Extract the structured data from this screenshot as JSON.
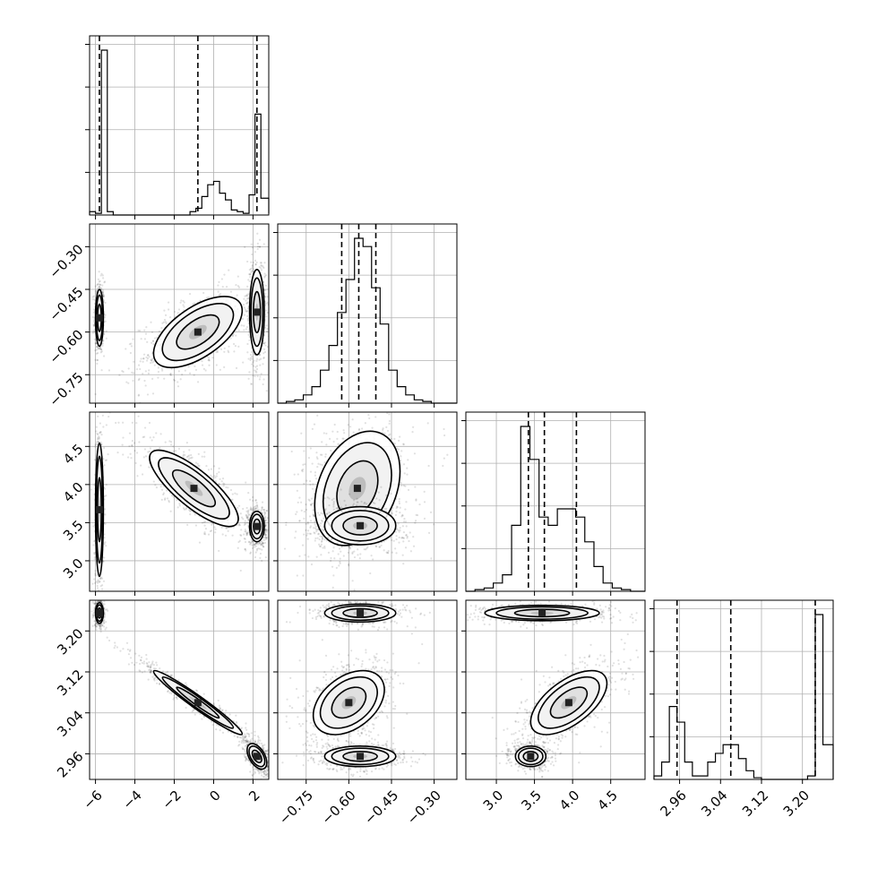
{
  "chart_data": {
    "type": "corner",
    "title": "",
    "grid": true,
    "parameters": [
      {
        "index": 0,
        "range": [
          -6.3,
          2.8
        ],
        "ticks": [
          -6,
          -4,
          -2,
          0,
          2
        ],
        "tick_labels": [
          "−6",
          "−4",
          "−2",
          "0",
          "2"
        ],
        "quantiles": [
          -5.8,
          -0.8,
          2.2
        ]
      },
      {
        "index": 1,
        "range": [
          -0.85,
          -0.22
        ],
        "ticks": [
          -0.75,
          -0.6,
          -0.45,
          -0.3
        ],
        "tick_labels": [
          "−0.75",
          "−0.60",
          "−0.45",
          "−0.30"
        ],
        "quantiles": [
          -0.625,
          -0.565,
          -0.505
        ]
      },
      {
        "index": 2,
        "range": [
          2.6,
          4.95
        ],
        "ticks": [
          3.0,
          3.5,
          4.0,
          4.5
        ],
        "tick_labels": [
          "3.0",
          "3.5",
          "4.0",
          "4.5"
        ],
        "quantiles": [
          3.42,
          3.63,
          4.05
        ]
      },
      {
        "index": 3,
        "range": [
          2.91,
          3.26
        ],
        "ticks": [
          2.96,
          3.04,
          3.12,
          3.2
        ],
        "tick_labels": [
          "2.96",
          "3.04",
          "3.12",
          "3.20"
        ],
        "quantiles": [
          2.955,
          3.06,
          3.225
        ]
      }
    ],
    "histograms": [
      {
        "param": 0,
        "bins": [
          -6.3,
          -6.0,
          -5.7,
          -5.4,
          -5.1,
          -4.8,
          -4.5,
          -4.2,
          -3.9,
          -3.6,
          -3.3,
          -3.0,
          -2.7,
          -2.4,
          -2.1,
          -1.8,
          -1.5,
          -1.2,
          -0.9,
          -0.6,
          -0.3,
          0.0,
          0.3,
          0.6,
          0.9,
          1.2,
          1.5,
          1.8,
          2.1,
          2.4,
          2.8
        ],
        "counts": [
          2,
          1,
          98,
          2,
          0,
          0,
          0,
          0,
          0,
          0,
          0,
          0,
          0,
          0,
          0,
          0,
          0,
          2,
          4,
          11,
          18,
          20,
          13,
          9,
          3,
          2,
          1,
          12,
          60,
          10,
          1
        ]
      },
      {
        "param": 1,
        "bins": [
          -0.85,
          -0.82,
          -0.79,
          -0.76,
          -0.73,
          -0.7,
          -0.67,
          -0.64,
          -0.61,
          -0.58,
          -0.55,
          -0.52,
          -0.49,
          -0.46,
          -0.43,
          -0.4,
          -0.37,
          -0.34,
          -0.31,
          -0.28,
          -0.25,
          -0.22
        ],
        "counts": [
          0,
          1,
          2,
          5,
          10,
          20,
          35,
          55,
          75,
          100,
          95,
          70,
          48,
          20,
          10,
          5,
          2,
          1,
          0,
          0,
          0
        ]
      },
      {
        "param": 2,
        "bins": [
          2.6,
          2.72,
          2.84,
          2.96,
          3.08,
          3.2,
          3.32,
          3.44,
          3.56,
          3.68,
          3.8,
          3.92,
          4.04,
          4.16,
          4.28,
          4.4,
          4.52,
          4.64,
          4.76,
          4.88,
          4.95
        ],
        "counts": [
          0,
          1,
          2,
          5,
          10,
          40,
          100,
          80,
          45,
          40,
          50,
          50,
          45,
          30,
          15,
          5,
          2,
          1,
          0,
          0
        ]
      },
      {
        "param": 3,
        "bins": [
          2.91,
          2.925,
          2.94,
          2.955,
          2.97,
          2.985,
          3.0,
          3.015,
          3.03,
          3.045,
          3.06,
          3.075,
          3.09,
          3.105,
          3.12,
          3.135,
          3.15,
          3.165,
          3.18,
          3.195,
          3.21,
          3.225,
          3.24,
          3.26
        ],
        "counts": [
          2,
          10,
          42,
          33,
          10,
          2,
          2,
          10,
          15,
          20,
          20,
          12,
          5,
          1,
          0,
          0,
          0,
          0,
          0,
          0,
          2,
          95,
          20
        ]
      }
    ],
    "pair_plots": [
      {
        "x": 0,
        "y": 1,
        "modes": [
          {
            "cx": -5.8,
            "cy": -0.55,
            "sx": 0.08,
            "sy": 0.04,
            "rho": 0.0,
            "n": 500
          },
          {
            "cx": -0.8,
            "cy": -0.6,
            "sx": 0.9,
            "sy": 0.05,
            "rho": 0.6,
            "n": 800
          },
          {
            "cx": 2.2,
            "cy": -0.53,
            "sx": 0.15,
            "sy": 0.06,
            "rho": 0.0,
            "n": 600
          }
        ]
      },
      {
        "x": 0,
        "y": 2,
        "modes": [
          {
            "cx": -5.8,
            "cy": 3.67,
            "sx": 0.08,
            "sy": 0.35,
            "rho": 0.0,
            "n": 500
          },
          {
            "cx": -1.0,
            "cy": 3.95,
            "sx": 0.9,
            "sy": 0.2,
            "rho": -0.8,
            "n": 800
          },
          {
            "cx": 2.2,
            "cy": 3.45,
            "sx": 0.15,
            "sy": 0.08,
            "rho": 0.0,
            "n": 600
          }
        ]
      },
      {
        "x": 0,
        "y": 3,
        "modes": [
          {
            "cx": -5.8,
            "cy": 3.235,
            "sx": 0.08,
            "sy": 0.008,
            "rho": 0.0,
            "n": 500
          },
          {
            "cx": -0.8,
            "cy": 3.06,
            "sx": 0.9,
            "sy": 0.025,
            "rho": -0.97,
            "n": 800
          },
          {
            "cx": 2.2,
            "cy": 2.955,
            "sx": 0.2,
            "sy": 0.01,
            "rho": -0.5,
            "n": 600
          }
        ]
      },
      {
        "x": 1,
        "y": 2,
        "modes": [
          {
            "cx": -0.57,
            "cy": 3.95,
            "sx": 0.06,
            "sy": 0.3,
            "rho": 0.3,
            "n": 900
          },
          {
            "cx": -0.56,
            "cy": 3.46,
            "sx": 0.05,
            "sy": 0.1,
            "rho": 0.0,
            "n": 700
          }
        ]
      },
      {
        "x": 1,
        "y": 3,
        "modes": [
          {
            "cx": -0.56,
            "cy": 3.235,
            "sx": 0.05,
            "sy": 0.007,
            "rho": 0.0,
            "n": 600
          },
          {
            "cx": -0.6,
            "cy": 3.06,
            "sx": 0.05,
            "sy": 0.025,
            "rho": 0.4,
            "n": 700
          },
          {
            "cx": -0.56,
            "cy": 2.955,
            "sx": 0.05,
            "sy": 0.008,
            "rho": 0.0,
            "n": 600
          }
        ]
      },
      {
        "x": 2,
        "y": 3,
        "modes": [
          {
            "cx": 3.6,
            "cy": 3.235,
            "sx": 0.3,
            "sy": 0.006,
            "rho": 0.0,
            "n": 600
          },
          {
            "cx": 3.95,
            "cy": 3.06,
            "sx": 0.2,
            "sy": 0.025,
            "rho": 0.6,
            "n": 700
          },
          {
            "cx": 3.45,
            "cy": 2.955,
            "sx": 0.08,
            "sy": 0.008,
            "rho": 0.0,
            "n": 600
          }
        ]
      }
    ]
  }
}
